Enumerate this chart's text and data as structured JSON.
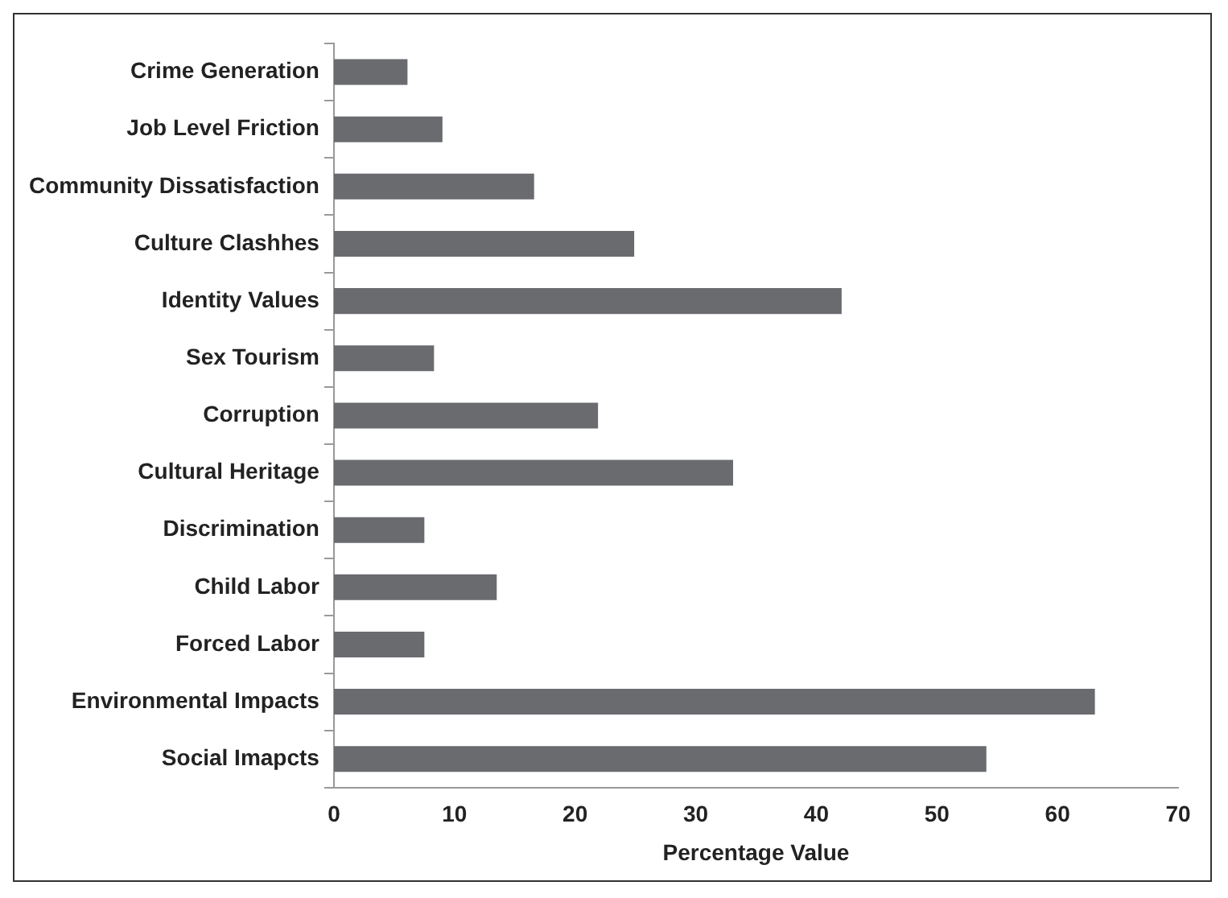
{
  "chart_data": {
    "type": "bar",
    "orientation": "horizontal",
    "xlabel": "Percentage Value",
    "categories": [
      "Crime Generation",
      "Job Level Friction",
      "Community Dissatisfaction",
      "Culture Clashhes",
      "Identity Values",
      "Sex Tourism",
      "Corruption",
      "Cultural Heritage",
      "Discrimination",
      "Child Labor",
      "Forced Labor",
      "Environmental Impacts",
      "Social Imapcts"
    ],
    "values": [
      6.1,
      9.0,
      16.6,
      24.9,
      42.1,
      8.3,
      21.9,
      33.1,
      7.5,
      13.5,
      7.5,
      63.1,
      54.1
    ],
    "color": "#6a6b6f",
    "xlim": [
      0,
      70
    ],
    "xticks": [
      0,
      10,
      20,
      30,
      40,
      50,
      60,
      70
    ],
    "grid": false,
    "legend": false
  }
}
